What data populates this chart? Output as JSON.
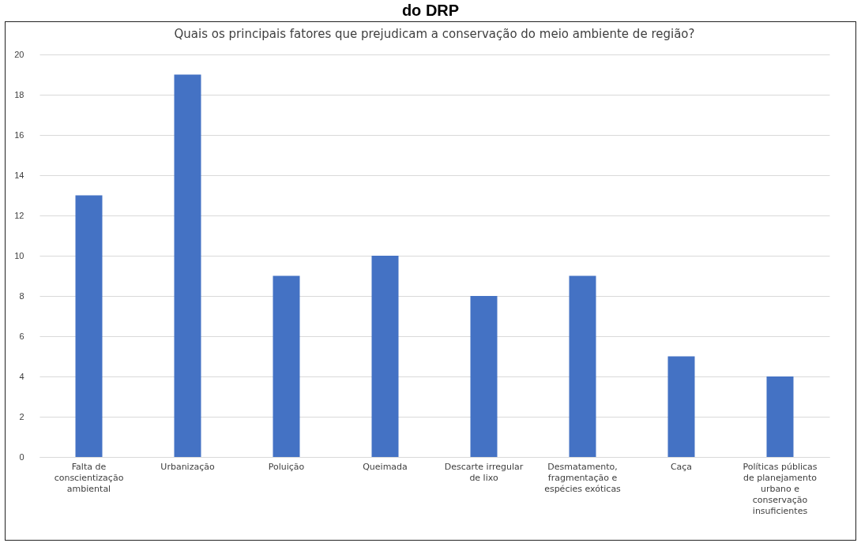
{
  "chart_data": {
    "type": "bar",
    "title": "Quais os principais fatores que prejudicam a conservação do meio ambiente de região?",
    "annotations": [
      "do DRP"
    ],
    "categories": [
      "Falta de conscientização ambiental",
      "Urbanização",
      "Poluição",
      "Queimada",
      "Descarte irregular de lixo",
      "Desmatamento, fragmentação e espécies exóticas",
      "Caça",
      "Políticas públicas de planejamento urbano e conservação insuficientes"
    ],
    "values": [
      13,
      19,
      9,
      10,
      8,
      9,
      5,
      4
    ],
    "color": "#4472c4",
    "ylim": [
      0,
      20
    ],
    "yticks": [
      0,
      2,
      4,
      6,
      8,
      10,
      12,
      14,
      16,
      18,
      20
    ],
    "grid": "y"
  }
}
